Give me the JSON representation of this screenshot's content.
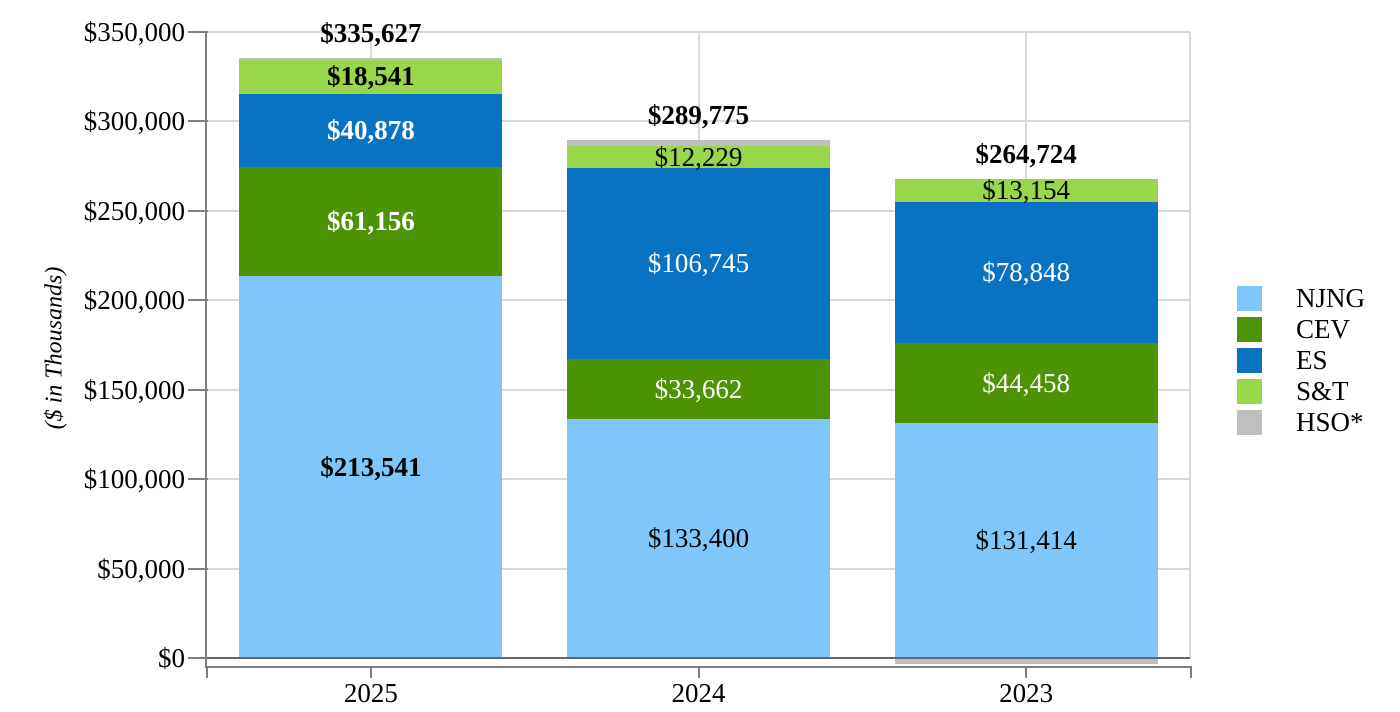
{
  "chart_data": {
    "type": "bar",
    "stacked": true,
    "title": "",
    "ylabel": "($ in Thousands)",
    "xlabel": "",
    "categories": [
      "2025",
      "2024",
      "2023"
    ],
    "series": [
      {
        "name": "NJNG",
        "color": "#7FC7FA",
        "label_color": "#000000",
        "values": [
          213541,
          133400,
          131414
        ],
        "labels": [
          "$213,541",
          "$133,400",
          "$131,414"
        ]
      },
      {
        "name": "CEV",
        "color": "#4C9306",
        "label_color": "#FFFFFF",
        "values": [
          61156,
          33662,
          44458
        ],
        "labels": [
          "$61,156",
          "$33,662",
          "$44,458"
        ]
      },
      {
        "name": "ES",
        "color": "#0A72C2",
        "label_color": "#FFFFFF",
        "values": [
          40878,
          106745,
          78848
        ],
        "labels": [
          "$40,878",
          "$106,745",
          "$78,848"
        ]
      },
      {
        "name": "S&T",
        "color": "#9AD64A",
        "label_color": "#000000",
        "values": [
          18541,
          12229,
          13154
        ],
        "labels": [
          "$18,541",
          "$12,229",
          "$13,154"
        ]
      },
      {
        "name": "HSO*",
        "color": "#BFBFBF",
        "label_color": null,
        "values": [
          1511,
          3739,
          -3150
        ],
        "labels": [
          null,
          null,
          null
        ]
      }
    ],
    "totals": [
      {
        "value": 335627,
        "label": "$335,627"
      },
      {
        "value": 289775,
        "label": "$289,775"
      },
      {
        "value": 264724,
        "label": "$264,724"
      }
    ],
    "y_ticks": [
      "$0",
      "$50,000",
      "$100,000",
      "$150,000",
      "$200,000",
      "$250,000",
      "$300,000",
      "$350,000"
    ],
    "y_tick_step": 50000,
    "ylim": [
      0,
      350000
    ],
    "grid": true,
    "legend": [
      "NJNG",
      "CEV",
      "ES",
      "S&T",
      "HSO*"
    ],
    "legend_position": "right",
    "bold_label_category": "2025",
    "colors": {
      "gridline": "#D9D9D9",
      "axis": "#7F7F7F",
      "zero_line": "#666666",
      "text": "#000000"
    }
  }
}
